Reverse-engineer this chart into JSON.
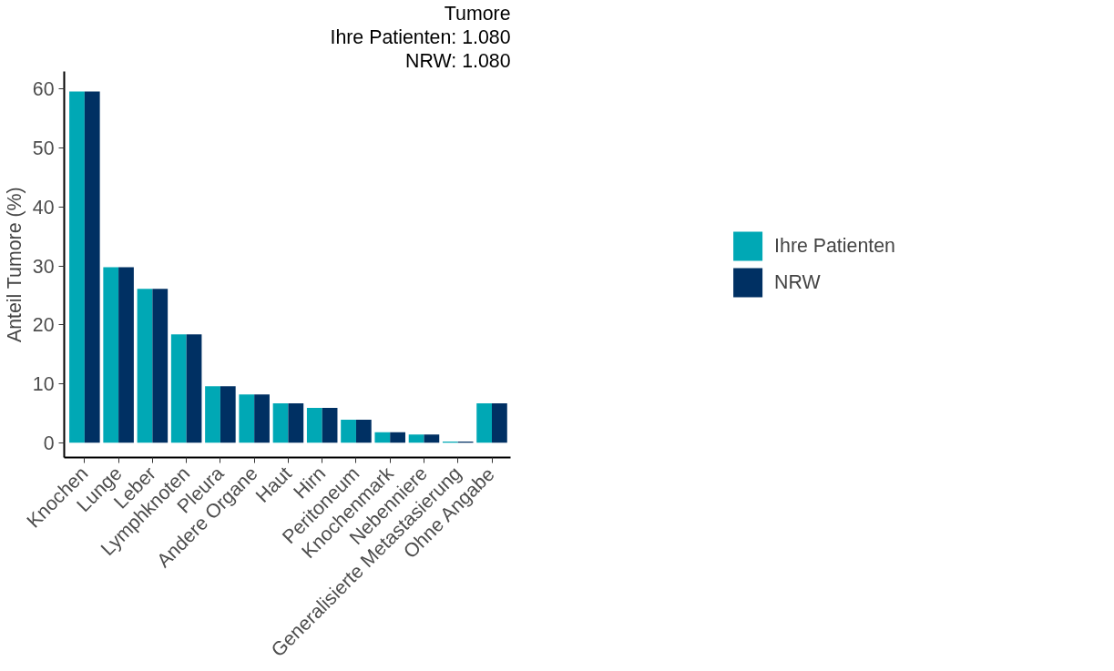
{
  "chart_data": {
    "type": "bar",
    "title": "Tumore",
    "subtitle": [
      "Ihre Patienten: 1.080",
      "NRW: 1.080"
    ],
    "ylabel": "Anteil Tumore (%)",
    "categories": [
      "Knochen",
      "Lunge",
      "Leber",
      "Lymphknoten",
      "Pleura",
      "Andere Organe",
      "Haut",
      "Hirn",
      "Peritoneum",
      "Knochenmark",
      "Nebenniere",
      "Generalisierte Metastasierung",
      "Ohne Angabe"
    ],
    "series": [
      {
        "name": "Ihre Patienten",
        "color": "#00a8b5",
        "values": [
          59.6,
          29.8,
          26.1,
          18.4,
          9.6,
          8.2,
          6.7,
          5.9,
          3.9,
          1.8,
          1.4,
          0.2,
          6.7
        ]
      },
      {
        "name": "NRW",
        "color": "#003063",
        "values": [
          59.6,
          29.8,
          26.1,
          18.4,
          9.6,
          8.2,
          6.7,
          5.9,
          3.9,
          1.8,
          1.4,
          0.2,
          6.7
        ]
      }
    ],
    "ylim": [
      -2.5,
      63
    ],
    "yticks": [
      0,
      10,
      20,
      30,
      40,
      50,
      60
    ],
    "grid": false,
    "legend": "right"
  }
}
